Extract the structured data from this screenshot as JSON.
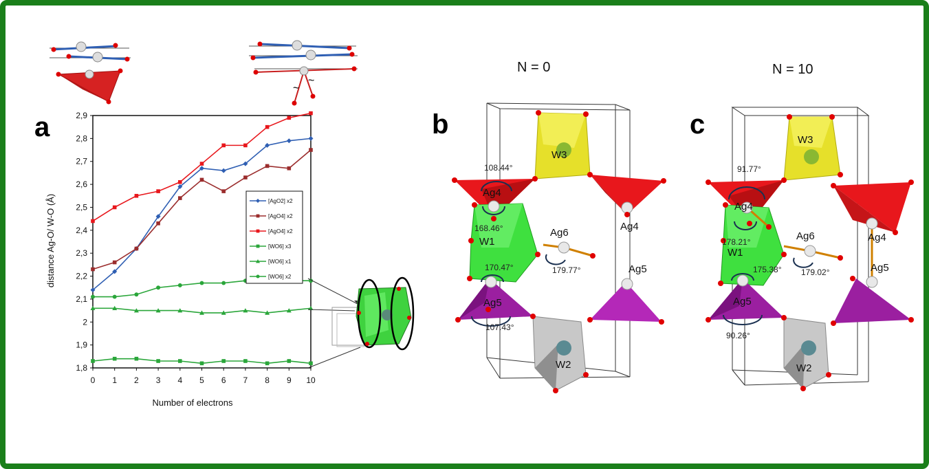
{
  "panels": {
    "a": {
      "letter": "a"
    },
    "b": {
      "letter": "b",
      "title": "N = 0",
      "labels": {
        "w3": "W3",
        "ag4_left": "Ag4",
        "ag4_right": "Ag4",
        "w1": "W1",
        "ag6": "Ag6",
        "ag5_left": "Ag5",
        "ag5_right": "Ag5",
        "w2": "W2"
      },
      "angles": {
        "a1": "108.44°",
        "a2": "168.46°",
        "a3": "170.47°",
        "a4": "179.77°",
        "a5": "107.43°"
      }
    },
    "c": {
      "letter": "c",
      "title": "N = 10",
      "labels": {
        "w3": "W3",
        "ag4_left": "Ag4",
        "ag4_right": "Ag4",
        "w1": "W1",
        "ag6": "Ag6",
        "ag5_left": "Ag5",
        "ag5_right": "Ag5",
        "w2": "W2"
      },
      "angles": {
        "a1": "91.77°",
        "a2": "178.21°",
        "a3": "175.38°",
        "a4": "179.02°",
        "a5": "90.26°"
      }
    }
  },
  "colors": {
    "frame": "#1a7f1a",
    "blue": "#2f5fb3",
    "darkred": "#9b2d2d",
    "red": "#e8171c",
    "green": "#2aa63a",
    "yellow": "#e6e02a",
    "purple": "#9b1fa0",
    "lime": "#3fe03f",
    "gray": "#bdbdbd"
  },
  "chart_data": {
    "type": "line",
    "xlabel": "Number of electrons",
    "ylabel": "distance Ag-O/ W-O (Å)",
    "x": [
      0,
      1,
      2,
      3,
      4,
      5,
      6,
      7,
      8,
      9,
      10
    ],
    "xlim": [
      0,
      10
    ],
    "ylim": [
      1.8,
      2.9
    ],
    "y_ticks": [
      "1,8",
      "1,9",
      "2",
      "2,1",
      "2,2",
      "2,3",
      "2,4",
      "2,5",
      "2,6",
      "2,7",
      "2,8",
      "2,9"
    ],
    "x_ticks": [
      "0",
      "1",
      "2",
      "3",
      "4",
      "5",
      "6",
      "7",
      "8",
      "9",
      "10"
    ],
    "legend_position": "right",
    "series": [
      {
        "name": "[AgO2]  x2",
        "marker": "diamond",
        "color": "#2f5fb3",
        "values": [
          2.14,
          2.22,
          2.32,
          2.46,
          2.59,
          2.67,
          2.66,
          2.69,
          2.77,
          2.79,
          2.8
        ]
      },
      {
        "name": "[AgO4]  x2",
        "marker": "square",
        "color": "#9b2d2d",
        "values": [
          2.23,
          2.26,
          2.32,
          2.43,
          2.54,
          2.62,
          2.57,
          2.63,
          2.68,
          2.67,
          2.75
        ]
      },
      {
        "name": "[AgO4]  x2",
        "marker": "square",
        "color": "#e8171c",
        "values": [
          2.44,
          2.5,
          2.55,
          2.57,
          2.61,
          2.69,
          2.77,
          2.77,
          2.85,
          2.89,
          2.91
        ]
      },
      {
        "name": "[WO6]  x3",
        "marker": "square",
        "color": "#2aa63a",
        "values": [
          1.83,
          1.84,
          1.84,
          1.83,
          1.83,
          1.82,
          1.83,
          1.83,
          1.82,
          1.83,
          1.82
        ]
      },
      {
        "name": "[WO6]  x1",
        "marker": "triangle",
        "color": "#2aa63a",
        "values": [
          2.06,
          2.06,
          2.05,
          2.05,
          2.05,
          2.04,
          2.04,
          2.05,
          2.04,
          2.05,
          2.06
        ]
      },
      {
        "name": "[WO6]  x2",
        "marker": "circle",
        "color": "#2aa63a",
        "values": [
          2.11,
          2.11,
          2.12,
          2.15,
          2.16,
          2.17,
          2.17,
          2.18,
          2.18,
          2.18,
          2.18
        ]
      }
    ]
  }
}
